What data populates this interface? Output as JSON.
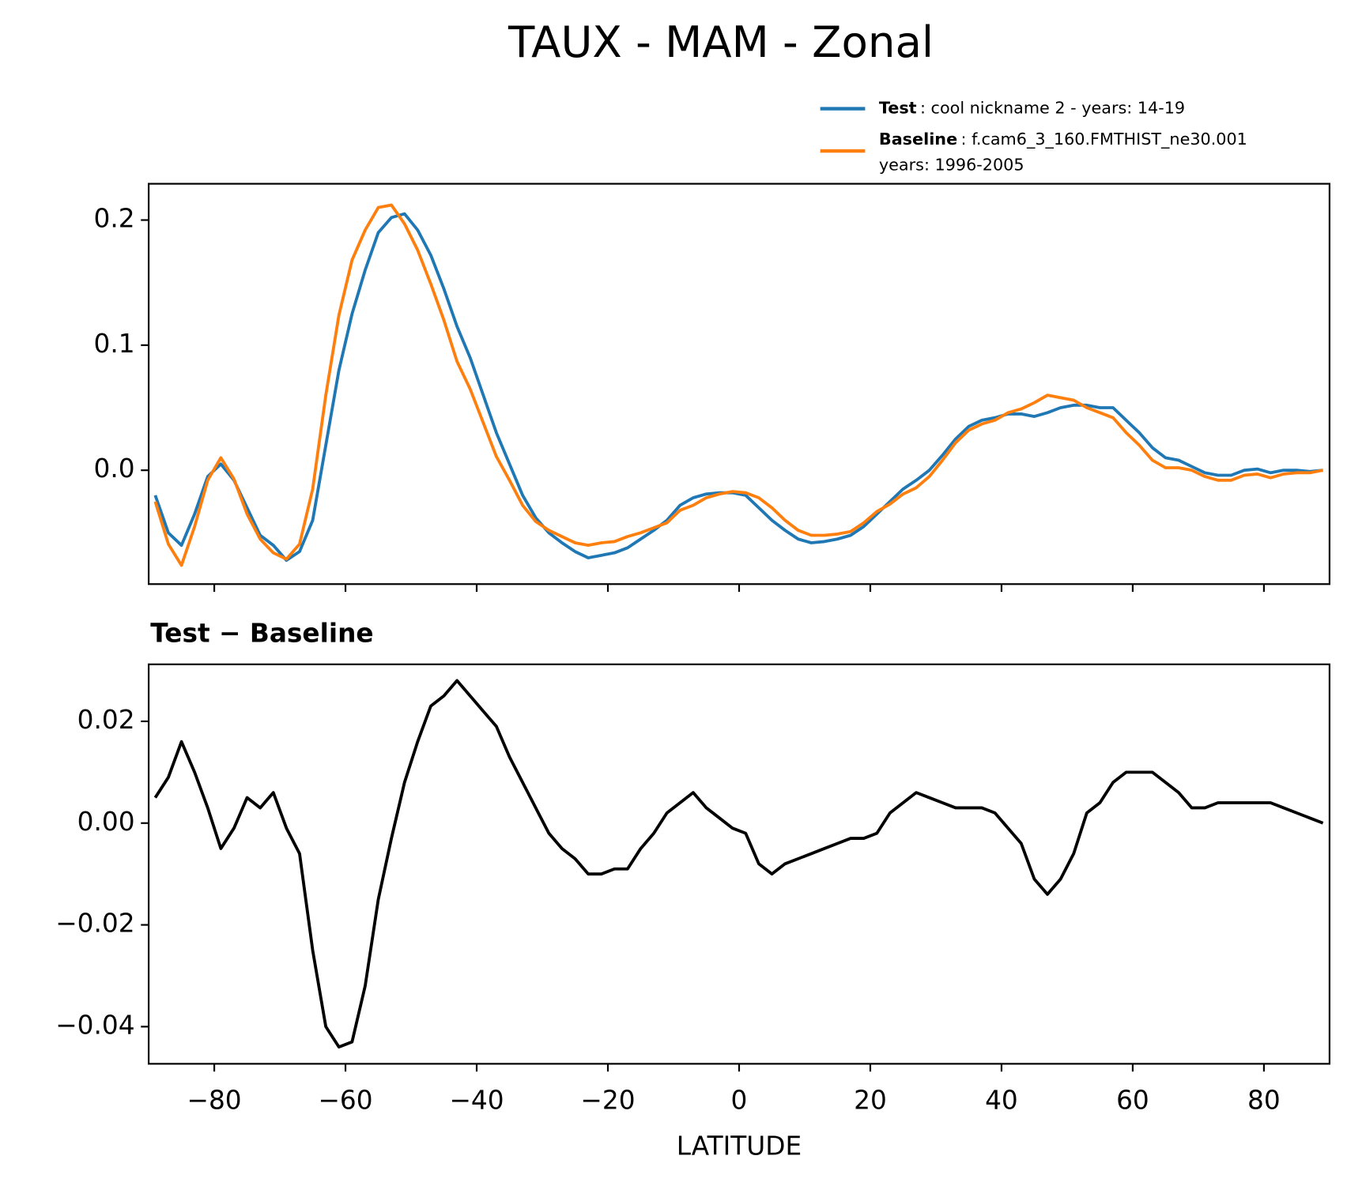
{
  "chart_data": [
    {
      "type": "line",
      "title": "TAUX - MAM - Zonal",
      "x": [
        -89,
        -87,
        -85,
        -83,
        -81,
        -79,
        -77,
        -75,
        -73,
        -71,
        -69,
        -67,
        -65,
        -63,
        -61,
        -59,
        -57,
        -55,
        -53,
        -51,
        -49,
        -47,
        -45,
        -43,
        -41,
        -39,
        -37,
        -35,
        -33,
        -31,
        -29,
        -27,
        -25,
        -23,
        -21,
        -19,
        -17,
        -15,
        -13,
        -11,
        -9,
        -7,
        -5,
        -3,
        -1,
        1,
        3,
        5,
        7,
        9,
        11,
        13,
        15,
        17,
        19,
        21,
        23,
        25,
        27,
        29,
        31,
        33,
        35,
        37,
        39,
        41,
        43,
        45,
        47,
        49,
        51,
        53,
        55,
        57,
        59,
        61,
        63,
        65,
        67,
        69,
        71,
        73,
        75,
        77,
        79,
        81,
        83,
        85,
        87,
        89
      ],
      "series": [
        {
          "name": "Test",
          "legend_text": [
            ": cool nickname 2 - years: 14-19"
          ],
          "color": "#1f77b4",
          "values": [
            -0.02,
            -0.05,
            -0.06,
            -0.035,
            -0.005,
            0.005,
            -0.008,
            -0.03,
            -0.052,
            -0.06,
            -0.072,
            -0.065,
            -0.04,
            0.02,
            0.08,
            0.125,
            0.16,
            0.19,
            0.202,
            0.205,
            0.192,
            0.172,
            0.145,
            0.115,
            0.09,
            0.06,
            0.03,
            0.005,
            -0.02,
            -0.038,
            -0.05,
            -0.058,
            -0.065,
            -0.07,
            -0.068,
            -0.066,
            -0.062,
            -0.055,
            -0.048,
            -0.04,
            -0.028,
            -0.022,
            -0.019,
            -0.018,
            -0.018,
            -0.02,
            -0.03,
            -0.04,
            -0.048,
            -0.055,
            -0.058,
            -0.057,
            -0.055,
            -0.052,
            -0.045,
            -0.035,
            -0.025,
            -0.015,
            -0.008,
            0.0,
            0.012,
            0.025,
            0.035,
            0.04,
            0.042,
            0.045,
            0.045,
            0.043,
            0.046,
            0.05,
            0.052,
            0.052,
            0.05,
            0.05,
            0.04,
            0.03,
            0.018,
            0.01,
            0.008,
            0.003,
            -0.002,
            -0.004,
            -0.004,
            0.0,
            0.001,
            -0.002,
            0.0,
            0.0,
            -0.001,
            0.0
          ]
        },
        {
          "name": "Baseline",
          "legend_text": [
            ": f.cam6_3_160.FMTHIST_ne30.001",
            "years: 1996-2005"
          ],
          "color": "#ff7f0e",
          "values": [
            -0.025,
            -0.059,
            -0.076,
            -0.045,
            -0.008,
            0.01,
            -0.007,
            -0.035,
            -0.055,
            -0.066,
            -0.071,
            -0.059,
            -0.015,
            0.06,
            0.124,
            0.168,
            0.192,
            0.21,
            0.212,
            0.197,
            0.176,
            0.149,
            0.12,
            0.087,
            0.065,
            0.038,
            0.011,
            -0.008,
            -0.028,
            -0.041,
            -0.048,
            -0.053,
            -0.058,
            -0.06,
            -0.058,
            -0.057,
            -0.053,
            -0.05,
            -0.046,
            -0.042,
            -0.032,
            -0.028,
            -0.022,
            -0.019,
            -0.017,
            -0.018,
            -0.022,
            -0.03,
            -0.04,
            -0.048,
            -0.052,
            -0.052,
            -0.051,
            -0.049,
            -0.042,
            -0.033,
            -0.027,
            -0.019,
            -0.014,
            -0.005,
            0.008,
            0.022,
            0.032,
            0.037,
            0.04,
            0.046,
            0.049,
            0.054,
            0.06,
            0.058,
            0.056,
            0.05,
            0.046,
            0.042,
            0.03,
            0.02,
            0.008,
            0.002,
            0.002,
            0.0,
            -0.005,
            -0.008,
            -0.008,
            -0.004,
            -0.003,
            -0.006,
            -0.003,
            -0.002,
            -0.002,
            0.0
          ]
        }
      ],
      "xlim": [
        -90,
        90
      ],
      "xticks": [
        -80,
        -60,
        -40,
        -20,
        0,
        20,
        40,
        60,
        80
      ],
      "show_xtick_labels": false,
      "ylim": [
        -0.091,
        0.229
      ],
      "yticks": [
        {
          "value": 0,
          "label": "0.0"
        },
        0.1,
        0.2
      ],
      "legend": "upper right"
    },
    {
      "type": "line",
      "title": "Test − Baseline",
      "xlabel": "LATITUDE",
      "x": [
        -89,
        -87,
        -85,
        -83,
        -81,
        -79,
        -77,
        -75,
        -73,
        -71,
        -69,
        -67,
        -65,
        -63,
        -61,
        -59,
        -57,
        -55,
        -53,
        -51,
        -49,
        -47,
        -45,
        -43,
        -41,
        -39,
        -37,
        -35,
        -33,
        -31,
        -29,
        -27,
        -25,
        -23,
        -21,
        -19,
        -17,
        -15,
        -13,
        -11,
        -9,
        -7,
        -5,
        -3,
        -1,
        1,
        3,
        5,
        7,
        9,
        11,
        13,
        15,
        17,
        19,
        21,
        23,
        25,
        27,
        29,
        31,
        33,
        35,
        37,
        39,
        41,
        43,
        45,
        47,
        49,
        51,
        53,
        55,
        57,
        59,
        61,
        63,
        65,
        67,
        69,
        71,
        73,
        75,
        77,
        79,
        81,
        83,
        85,
        87,
        89
      ],
      "color": "#000000",
      "values": [
        0.005,
        0.009,
        0.016,
        0.01,
        0.003,
        -0.005,
        -0.001,
        0.005,
        0.003,
        0.006,
        -0.001,
        -0.006,
        -0.025,
        -0.04,
        -0.044,
        -0.043,
        -0.032,
        -0.015,
        -0.003,
        0.008,
        0.016,
        0.023,
        0.025,
        0.028,
        0.025,
        0.022,
        0.019,
        0.013,
        0.008,
        0.003,
        -0.002,
        -0.005,
        -0.007,
        -0.01,
        -0.01,
        -0.009,
        -0.009,
        -0.005,
        -0.002,
        0.002,
        0.004,
        0.006,
        0.003,
        0.001,
        -0.001,
        -0.002,
        -0.008,
        -0.01,
        -0.008,
        -0.007,
        -0.006,
        -0.005,
        -0.004,
        -0.003,
        -0.003,
        -0.002,
        0.002,
        0.004,
        0.006,
        0.005,
        0.004,
        0.003,
        0.003,
        0.003,
        0.002,
        -0.001,
        -0.004,
        -0.011,
        -0.014,
        -0.011,
        -0.006,
        0.002,
        0.004,
        0.008,
        0.01,
        0.01,
        0.01,
        0.008,
        0.006,
        0.003,
        0.003,
        0.004,
        0.004,
        0.004,
        0.004,
        0.004,
        0.003,
        0.002,
        0.001,
        0.0
      ],
      "xlim": [
        -90,
        90
      ],
      "xticks": [
        {
          "value": -80,
          "label": "−80"
        },
        {
          "value": -60,
          "label": "−60"
        },
        {
          "value": -40,
          "label": "−40"
        },
        {
          "value": -20,
          "label": "−20"
        },
        0,
        20,
        40,
        60,
        80
      ],
      "show_xtick_labels": true,
      "ylim": [
        -0.0473,
        0.0312
      ],
      "yticks": [
        {
          "value": -0.04,
          "label": "−0.04"
        },
        {
          "value": -0.02,
          "label": "−0.02"
        },
        {
          "value": 0,
          "label": "0.00"
        },
        0.02
      ]
    }
  ]
}
